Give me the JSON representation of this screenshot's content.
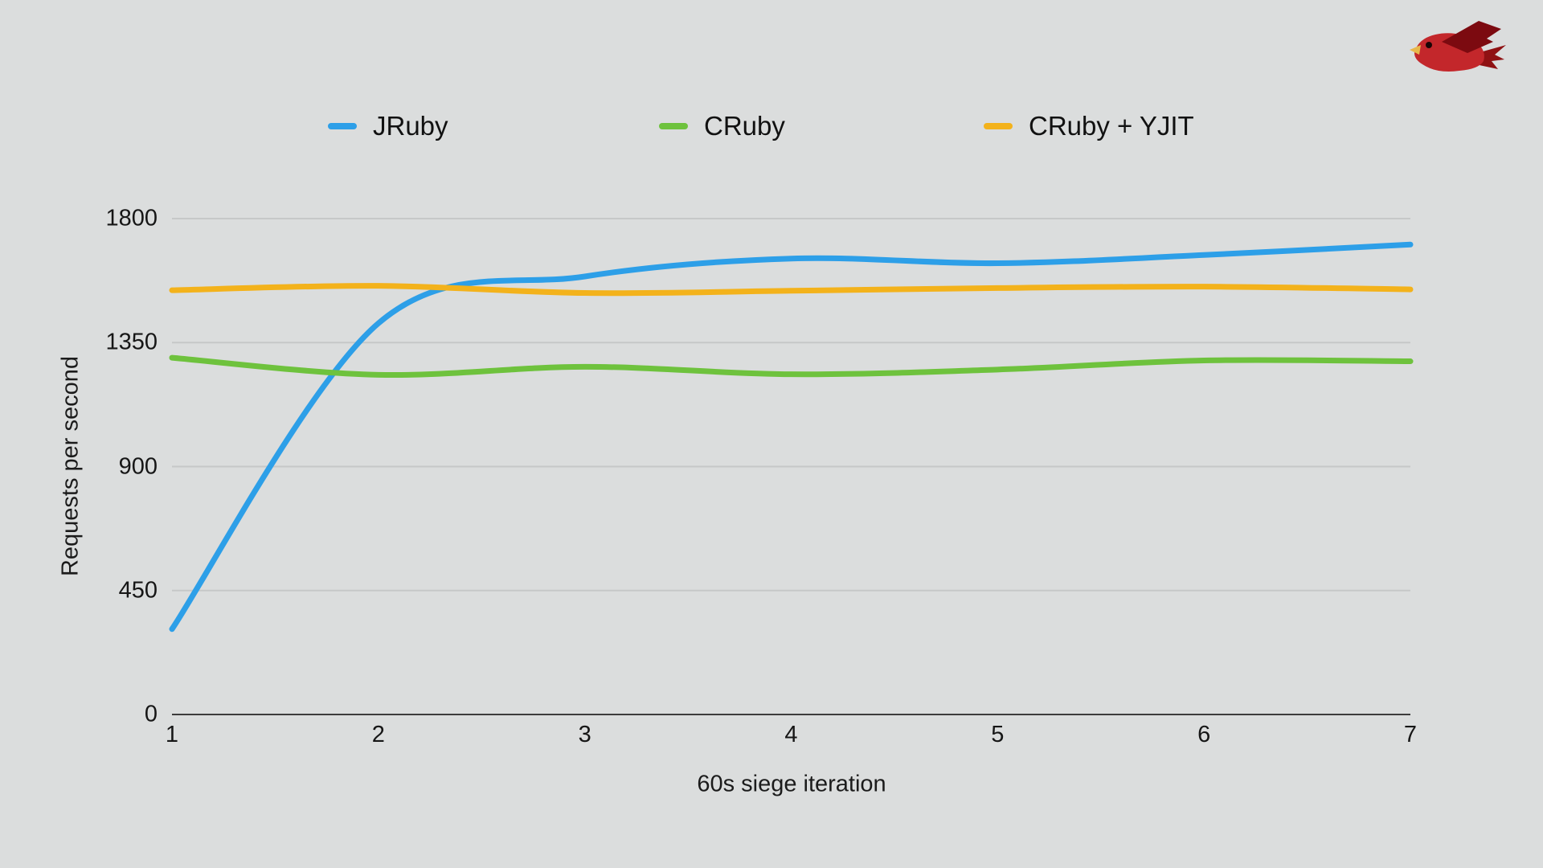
{
  "page": {
    "background": "#dbdddd",
    "grid_color": "#c6c8c8",
    "axis_color": "#3c3c3c",
    "text_color": "#161616"
  },
  "logo": {
    "name": "red bird logo"
  },
  "chart_data": {
    "type": "line",
    "title": "",
    "xlabel": "60s siege iteration",
    "ylabel": "Requests per second",
    "x": [
      1,
      2,
      3,
      4,
      5,
      6,
      7
    ],
    "xlim": [
      1,
      7
    ],
    "ylim": [
      0,
      1800
    ],
    "yticks": [
      0,
      450,
      900,
      1350,
      1800
    ],
    "grid": true,
    "legend_position": "top",
    "series": [
      {
        "name": "JRuby",
        "color": "#2d9fe8",
        "values": [
          310,
          1420,
          1590,
          1655,
          1638,
          1668,
          1706
        ]
      },
      {
        "name": "CRuby",
        "color": "#6ec23d",
        "values": [
          1295,
          1233,
          1262,
          1235,
          1252,
          1285,
          1282
        ]
      },
      {
        "name": "CRuby + YJIT",
        "color": "#f3b21b",
        "values": [
          1540,
          1556,
          1530,
          1538,
          1548,
          1553,
          1543
        ]
      }
    ]
  }
}
